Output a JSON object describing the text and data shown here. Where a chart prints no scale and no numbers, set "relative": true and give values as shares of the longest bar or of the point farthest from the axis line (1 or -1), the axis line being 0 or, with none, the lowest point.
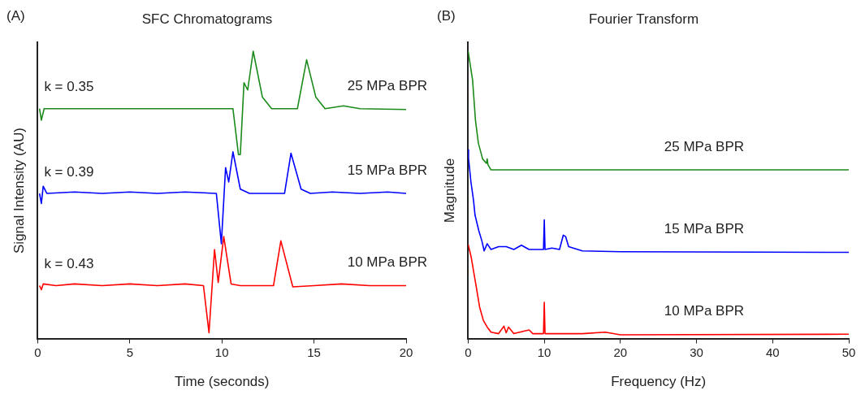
{
  "chart_data": [
    {
      "type": "line",
      "title": "SFC Chromatograms",
      "xlabel": "Time (seconds)",
      "ylabel": "Signal Intensity (AU)",
      "relative": true,
      "xlim": [
        0,
        20
      ],
      "xticks": [
        0,
        5,
        10,
        15,
        20
      ],
      "grid": false,
      "legend": false,
      "marker": "none",
      "annotations": [
        "(A)",
        "k = 0.35",
        "k = 0.39",
        "k = 0.43"
      ],
      "series": [
        {
          "name": "25 MPa BPR",
          "color": "#1a8a1a",
          "x": [
            0.1,
            0.2,
            0.35,
            3,
            6,
            10.6,
            10.9,
            11.0,
            11.2,
            11.4,
            11.7,
            12.2,
            12.7,
            14.1,
            14.6,
            15.1,
            15.6,
            16.6,
            17.5,
            20
          ],
          "values": [
            0.8,
            0.76,
            0.8,
            0.8,
            0.8,
            0.8,
            0.64,
            0.64,
            0.89,
            0.865,
            1.0,
            0.84,
            0.8,
            0.8,
            0.97,
            0.84,
            0.8,
            0.81,
            0.8,
            0.797
          ]
        },
        {
          "name": "15 MPa BPR",
          "color": "#0000ff",
          "x": [
            0.1,
            0.2,
            0.3,
            0.5,
            2,
            3.5,
            5,
            6.5,
            8,
            9.7,
            9.97,
            10.2,
            10.37,
            10.6,
            11.0,
            11.5,
            13.4,
            13.75,
            14.3,
            14.8,
            16,
            17.5,
            19,
            20
          ],
          "values": [
            0.505,
            0.47,
            0.53,
            0.505,
            0.51,
            0.505,
            0.51,
            0.505,
            0.51,
            0.505,
            0.33,
            0.595,
            0.545,
            0.65,
            0.52,
            0.505,
            0.505,
            0.645,
            0.52,
            0.505,
            0.51,
            0.505,
            0.51,
            0.505
          ]
        },
        {
          "name": "10 MPa BPR",
          "color": "#ff0000",
          "x": [
            0.1,
            0.2,
            0.3,
            1,
            2,
            3.5,
            5,
            6.5,
            8,
            9.0,
            9.3,
            9.6,
            9.8,
            10.1,
            10.5,
            11,
            12.8,
            13.2,
            13.85,
            15,
            16.5,
            18,
            20
          ],
          "values": [
            0.184,
            0.17,
            0.19,
            0.184,
            0.19,
            0.184,
            0.19,
            0.184,
            0.19,
            0.184,
            0.02,
            0.31,
            0.195,
            0.355,
            0.19,
            0.184,
            0.184,
            0.34,
            0.18,
            0.184,
            0.19,
            0.184,
            0.184
          ]
        }
      ]
    },
    {
      "type": "line",
      "title": "Fourier Transform",
      "xlabel": "Frequency (Hz)",
      "ylabel": "Magnitude",
      "relative": true,
      "xlim": [
        0,
        50
      ],
      "xticks": [
        0,
        10,
        20,
        30,
        40,
        50
      ],
      "grid": false,
      "legend": false,
      "marker": "none",
      "annotations": [
        "(B)"
      ],
      "series": [
        {
          "name": "25 MPa BPR",
          "color": "#1a8a1a",
          "x": [
            0,
            0.58,
            0.96,
            1.34,
            1.9,
            2.4,
            2.5,
            2.6,
            3.0,
            10,
            50
          ],
          "values": [
            1.0,
            0.9,
            0.76,
            0.68,
            0.625,
            0.61,
            0.625,
            0.605,
            0.587,
            0.587,
            0.587
          ]
        },
        {
          "name": "15 MPa BPR",
          "color": "#0000ff",
          "x": [
            0,
            0.05,
            0.37,
            0.71,
            0.9,
            1.4,
            1.8,
            2.1,
            2.5,
            3,
            4,
            5,
            6,
            7,
            8,
            9.9,
            10,
            10.1,
            11,
            12,
            12.5,
            12.8,
            13.2,
            15,
            20,
            50
          ],
          "values": [
            0.657,
            0.627,
            0.544,
            0.48,
            0.43,
            0.375,
            0.34,
            0.305,
            0.33,
            0.31,
            0.32,
            0.32,
            0.31,
            0.325,
            0.31,
            0.31,
            0.413,
            0.31,
            0.315,
            0.31,
            0.36,
            0.355,
            0.32,
            0.305,
            0.302,
            0.3
          ]
        },
        {
          "name": "10 MPa BPR",
          "color": "#ff0000",
          "x": [
            0,
            0.4,
            1,
            1.5,
            2,
            2.5,
            3,
            4,
            4.7,
            5,
            5.3,
            6,
            8,
            8.5,
            9.9,
            10,
            10.1,
            12,
            15,
            18,
            20,
            50
          ],
          "values": [
            0.328,
            0.283,
            0.19,
            0.11,
            0.063,
            0.04,
            0.022,
            0.017,
            0.043,
            0.02,
            0.04,
            0.017,
            0.03,
            0.017,
            0.017,
            0.126,
            0.017,
            0.017,
            0.017,
            0.022,
            0.013,
            0.015
          ]
        }
      ]
    }
  ]
}
